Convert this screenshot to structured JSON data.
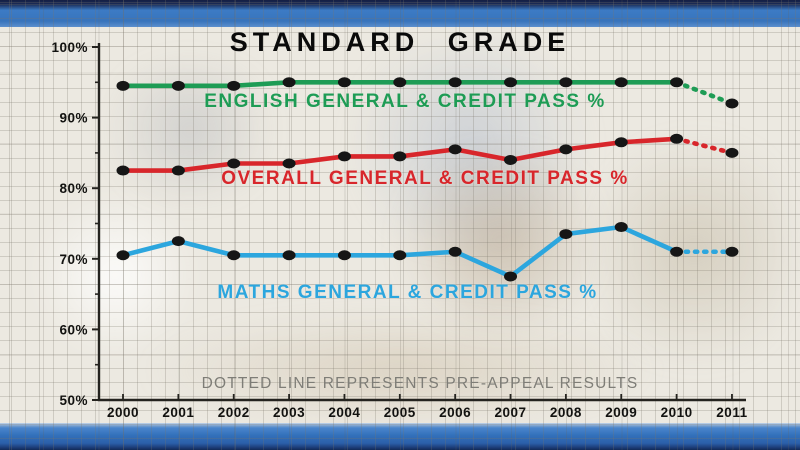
{
  "header": {
    "title": "STANDARD GRADE"
  },
  "footer_note": "DOTTED LINE REPRESENTS PRE-APPEAL RESULTS",
  "colors": {
    "top_bar_blue": "#3B79C4",
    "bar_navy": "#152A56",
    "paper": "#ECE9E1",
    "axis": "#24231F",
    "tick_label": "#121210",
    "data_dot": "#161616",
    "note_text": "#7E7D77",
    "title_text": "#0A0A0A",
    "english_green": "#1E9C55",
    "overall_red": "#D8262B",
    "maths_blue": "#2CA6DE"
  },
  "chart_data": {
    "type": "line",
    "title": "STANDARD GRADE",
    "x": [
      2000,
      2001,
      2002,
      2003,
      2004,
      2005,
      2006,
      2007,
      2008,
      2009,
      2010,
      2011
    ],
    "x_tick_labels": [
      "2000",
      "2001",
      "2002",
      "2003",
      "2004",
      "2005",
      "2006",
      "2007",
      "2008",
      "2009",
      "2010",
      "2011"
    ],
    "ylim": [
      50,
      100
    ],
    "y_major_ticks": [
      100,
      90,
      80,
      70,
      60,
      50
    ],
    "y_major_tick_labels": [
      "100%",
      "90%",
      "80%",
      "70%",
      "60%",
      "50%"
    ],
    "y_minor_ticks": [
      95,
      85,
      75,
      65,
      55
    ],
    "grid": "graph-paper background",
    "legend_position": "inline labels next to each line",
    "annotation": "DOTTED LINE REPRESENTS PRE-APPEAL RESULTS",
    "dotted_segment": {
      "from_x": 2010,
      "to_x": 2011,
      "meaning": "pre-appeal results"
    },
    "series": [
      {
        "id": "english",
        "name": "ENGLISH GENERAL & CREDIT PASS %",
        "color": "#1E9C55",
        "values": [
          94.5,
          94.5,
          94.5,
          95,
          95,
          95,
          95,
          95,
          95,
          95,
          95,
          92
        ]
      },
      {
        "id": "overall",
        "name": "OVERALL GENERAL & CREDIT PASS %",
        "color": "#D8262B",
        "values": [
          82.5,
          82.5,
          83.5,
          83.5,
          84.5,
          84.5,
          85.5,
          84,
          85.5,
          86.5,
          87,
          85
        ]
      },
      {
        "id": "maths",
        "name": "MATHS GENERAL & CREDIT PASS %",
        "color": "#2CA6DE",
        "values": [
          70.5,
          72.5,
          70.5,
          70.5,
          70.5,
          70.5,
          71,
          67.5,
          73.5,
          74.5,
          71,
          71
        ]
      }
    ]
  }
}
